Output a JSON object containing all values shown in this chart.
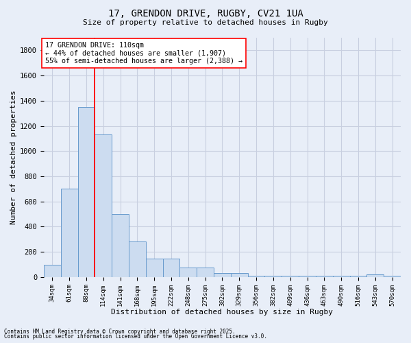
{
  "title1": "17, GRENDON DRIVE, RUGBY, CV21 1UA",
  "title2": "Size of property relative to detached houses in Rugby",
  "xlabel": "Distribution of detached houses by size in Rugby",
  "ylabel": "Number of detached properties",
  "categories": [
    "34sqm",
    "61sqm",
    "88sqm",
    "114sqm",
    "141sqm",
    "168sqm",
    "195sqm",
    "222sqm",
    "248sqm",
    "275sqm",
    "302sqm",
    "329sqm",
    "356sqm",
    "382sqm",
    "409sqm",
    "436sqm",
    "463sqm",
    "490sqm",
    "516sqm",
    "543sqm",
    "570sqm"
  ],
  "values": [
    100,
    700,
    1350,
    1130,
    500,
    280,
    148,
    148,
    75,
    75,
    30,
    30,
    10,
    10,
    10,
    10,
    10,
    10,
    10,
    20,
    10
  ],
  "bar_color": "#ccdcf0",
  "bar_edge_color": "#6699cc",
  "grid_color": "#c8cfe0",
  "background_color": "#e8eef8",
  "vline_x": 2.5,
  "vline_color": "red",
  "annotation_text": "17 GRENDON DRIVE: 110sqm\n← 44% of detached houses are smaller (1,907)\n55% of semi-detached houses are larger (2,388) →",
  "annotation_box_color": "white",
  "annotation_box_edge": "red",
  "ylim": [
    0,
    1900
  ],
  "yticks": [
    0,
    200,
    400,
    600,
    800,
    1000,
    1200,
    1400,
    1600,
    1800
  ],
  "footer1": "Contains HM Land Registry data © Crown copyright and database right 2025.",
  "footer2": "Contains public sector information licensed under the Open Government Licence v3.0."
}
